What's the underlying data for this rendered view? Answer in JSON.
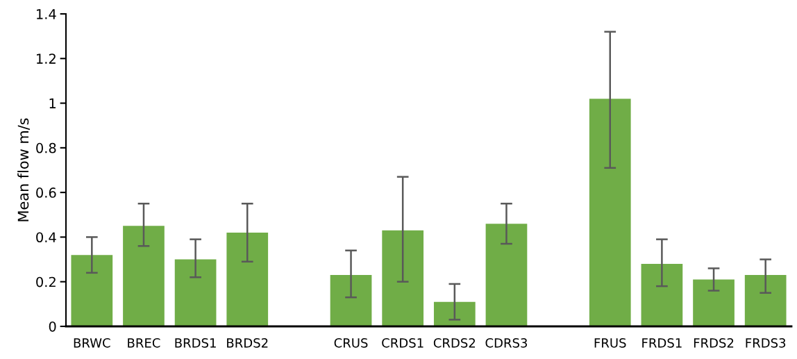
{
  "chart_data": {
    "type": "bar",
    "ylabel": "Mean flow m/s",
    "categories": [
      "BRWC",
      "BREC",
      "BRDS1",
      "BRDS2",
      null,
      "CRUS",
      "CRDS1",
      "CRDS2",
      "CDRS3",
      null,
      "FRUS",
      "FRDS1",
      "FRDS2",
      "FRDS3"
    ],
    "values": [
      0.32,
      0.45,
      0.3,
      0.42,
      null,
      0.23,
      0.43,
      0.11,
      0.46,
      null,
      1.02,
      0.28,
      0.21,
      0.23
    ],
    "errors": [
      [
        0.24,
        0.4
      ],
      [
        0.36,
        0.55
      ],
      [
        0.22,
        0.39
      ],
      [
        0.29,
        0.55
      ],
      null,
      [
        0.13,
        0.34
      ],
      [
        0.2,
        0.67
      ],
      [
        0.03,
        0.19
      ],
      [
        0.37,
        0.55
      ],
      null,
      [
        0.71,
        1.32
      ],
      [
        0.18,
        0.39
      ],
      [
        0.16,
        0.26
      ],
      [
        0.15,
        0.3
      ]
    ],
    "color": "#70ad47",
    "ylim": [
      0,
      1.4
    ],
    "yticks": [
      0,
      {
        "value": 0.2,
        "label": "0.2"
      },
      {
        "value": 0.4,
        "label": "0.4"
      },
      {
        "value": 0.6,
        "label": "0.6"
      },
      {
        "value": 0.8,
        "label": "0.8"
      },
      1,
      {
        "value": 1.2,
        "label": "1.2"
      },
      {
        "value": 1.4,
        "label": "1.4"
      }
    ],
    "grid": false,
    "legend": false
  }
}
